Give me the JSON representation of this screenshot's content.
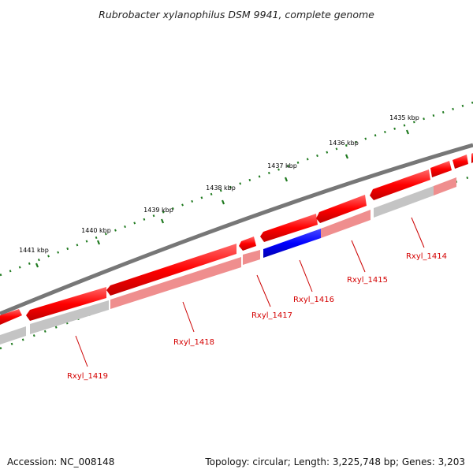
{
  "title": "Rubrobacter xylanophilus DSM 9941, complete genome",
  "scale_labels": [
    "1441 kbp",
    "1440 kbp",
    "1439 kbp",
    "1438 kbp",
    "1437 kbp",
    "1436 kbp",
    "1435 kbp"
  ],
  "genes": [
    {
      "name": "Rxyl_1419",
      "color": "#d40000"
    },
    {
      "name": "Rxyl_1418",
      "color": "#d40000"
    },
    {
      "name": "Rxyl_1417",
      "color": "#d40000"
    },
    {
      "name": "Rxyl_1416",
      "color": "#d40000"
    },
    {
      "name": "Rxyl_1415",
      "color": "#d40000"
    },
    {
      "name": "Rxyl_1414",
      "color": "#d40000"
    }
  ],
  "colors": {
    "backbone": "#777777",
    "cds_forward": "#ff0000",
    "cds_reverse": "#0000ff",
    "cds_light": "#ef8e8e",
    "cds_gray": "#c4c4c4",
    "tick": "#1f7a1f"
  },
  "footer": {
    "accession": "Accession: NC_008148",
    "topology": "Topology: circular; Length: 3,225,748 bp; Genes: 3,203"
  }
}
